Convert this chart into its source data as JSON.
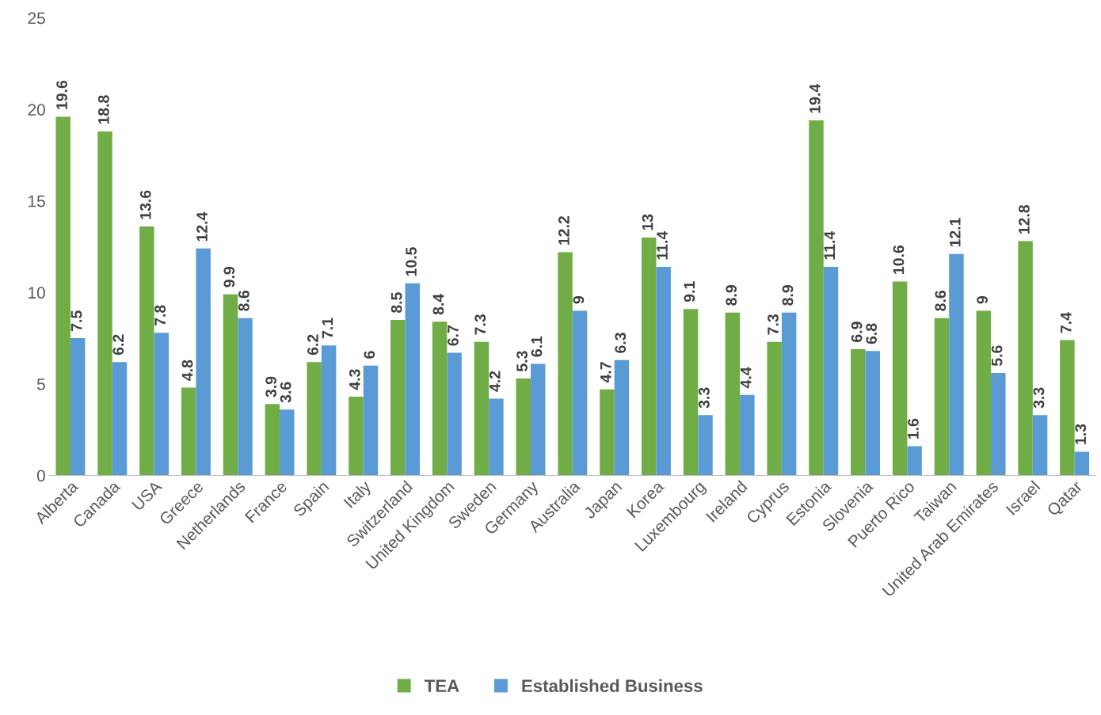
{
  "chart_data": {
    "type": "bar",
    "categories": [
      "Alberta",
      "Canada",
      "USA",
      "Greece",
      "Netherlands",
      "France",
      "Spain",
      "Italy",
      "Switzerland",
      "United Kingdom",
      "Sweden",
      "Germany",
      "Australia",
      "Japan",
      "Korea",
      "Luxembourg",
      "Ireland",
      "Cyprus",
      "Estonia",
      "Slovenia",
      "Puerto Rico",
      "Taiwan",
      "United Arab Emirates",
      "Israel",
      "Qatar"
    ],
    "series": [
      {
        "name": "TEA",
        "color": "#70ad47",
        "values": [
          19.6,
          18.8,
          13.6,
          4.8,
          9.9,
          3.9,
          6.2,
          4.3,
          8.5,
          8.4,
          7.3,
          5.3,
          12.2,
          4.7,
          13,
          9.1,
          8.9,
          7.3,
          19.4,
          6.9,
          10.6,
          8.6,
          9,
          12.8,
          7.4
        ]
      },
      {
        "name": "Established Business",
        "color": "#5b9bd5",
        "values": [
          7.5,
          6.2,
          7.8,
          12.4,
          8.6,
          3.6,
          7.1,
          6,
          10.5,
          6.7,
          4.2,
          6.1,
          9,
          6.3,
          11.4,
          3.3,
          4.4,
          8.9,
          11.4,
          6.8,
          1.6,
          12.1,
          5.6,
          3.3,
          1.3
        ]
      }
    ],
    "ylim": [
      0,
      25
    ],
    "yticks": [
      0,
      5,
      10,
      15,
      20,
      25
    ],
    "grid": false,
    "legend": "bottom",
    "data_labels": true
  }
}
